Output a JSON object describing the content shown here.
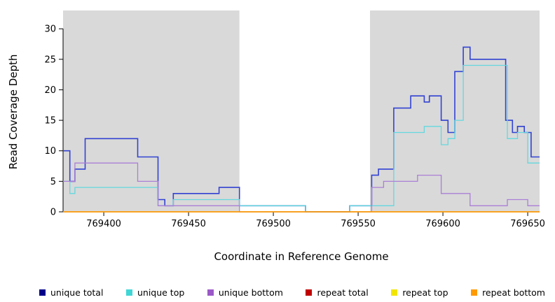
{
  "figure": {
    "background": "#ffffff",
    "shaded_color": "#d9d9d9",
    "axis_color": "#000000"
  },
  "chart_data": {
    "type": "line",
    "subtype": "step-coverage",
    "title": "",
    "xlabel": "Coordinate in Reference Genome",
    "ylabel": "Read Coverage Depth",
    "xlim": [
      769376,
      769657
    ],
    "ylim": [
      0,
      33
    ],
    "xticks": [
      769400,
      769450,
      769500,
      769550,
      769600,
      769650
    ],
    "yticks": [
      0,
      5,
      10,
      15,
      20,
      25,
      30
    ],
    "grid": false,
    "legend_position": "bottom",
    "shaded_regions": [
      [
        769376,
        769480
      ],
      [
        769557,
        769657
      ]
    ],
    "series": [
      {
        "name": "unique total",
        "color": "#3242d2",
        "width": 1.6,
        "steps": [
          [
            769376,
            10
          ],
          [
            769380,
            5
          ],
          [
            769383,
            7
          ],
          [
            769389,
            12
          ],
          [
            769420,
            9
          ],
          [
            769432,
            2
          ],
          [
            769436,
            1
          ],
          [
            769441,
            3
          ],
          [
            769468,
            4
          ],
          [
            769480,
            1
          ],
          [
            769519,
            0
          ],
          [
            769545,
            1
          ],
          [
            769558,
            6
          ],
          [
            769562,
            7
          ],
          [
            769571,
            17
          ],
          [
            769581,
            19
          ],
          [
            769589,
            18
          ],
          [
            769592,
            19
          ],
          [
            769599,
            15
          ],
          [
            769603,
            13
          ],
          [
            769607,
            23
          ],
          [
            769612,
            27
          ],
          [
            769616,
            25
          ],
          [
            769637,
            15
          ],
          [
            769641,
            13
          ],
          [
            769644,
            14
          ],
          [
            769648,
            13
          ],
          [
            769652,
            9
          ]
        ]
      },
      {
        "name": "unique top",
        "color": "#63d8de",
        "width": 1.3,
        "steps": [
          [
            769376,
            5
          ],
          [
            769380,
            3
          ],
          [
            769383,
            4
          ],
          [
            769432,
            1
          ],
          [
            769441,
            2
          ],
          [
            769480,
            1
          ],
          [
            769519,
            0
          ],
          [
            769545,
            1
          ],
          [
            769571,
            13
          ],
          [
            769589,
            14
          ],
          [
            769599,
            11
          ],
          [
            769603,
            12
          ],
          [
            769607,
            15
          ],
          [
            769612,
            24
          ],
          [
            769638,
            12
          ],
          [
            769644,
            13
          ],
          [
            769650,
            8
          ]
        ]
      },
      {
        "name": "unique bottom",
        "color": "#ab7fd6",
        "width": 1.3,
        "steps": [
          [
            769376,
            5
          ],
          [
            769383,
            8
          ],
          [
            769420,
            5
          ],
          [
            769432,
            1
          ],
          [
            769441,
            1
          ],
          [
            769480,
            0
          ],
          [
            769558,
            4
          ],
          [
            769565,
            5
          ],
          [
            769585,
            6
          ],
          [
            769599,
            3
          ],
          [
            769616,
            1
          ],
          [
            769638,
            2
          ],
          [
            769650,
            1
          ]
        ]
      },
      {
        "name": "repeat total",
        "color": "#cc0000",
        "width": 1.3,
        "steps": [
          [
            769376,
            0
          ]
        ]
      },
      {
        "name": "repeat top",
        "color": "#f0e400",
        "width": 1.3,
        "steps": [
          [
            769376,
            0
          ]
        ]
      },
      {
        "name": "repeat bottom",
        "color": "#ff9a00",
        "width": 1.4,
        "steps": [
          [
            769376,
            0
          ]
        ]
      }
    ]
  },
  "legend": {
    "items": [
      {
        "label": "unique total",
        "color": "#00008b"
      },
      {
        "label": "unique top",
        "color": "#40d6d6"
      },
      {
        "label": "unique bottom",
        "color": "#9b59c8"
      },
      {
        "label": "repeat total",
        "color": "#c00000"
      },
      {
        "label": "repeat top",
        "color": "#f2e600"
      },
      {
        "label": "repeat bottom",
        "color": "#ff9a00"
      }
    ]
  }
}
